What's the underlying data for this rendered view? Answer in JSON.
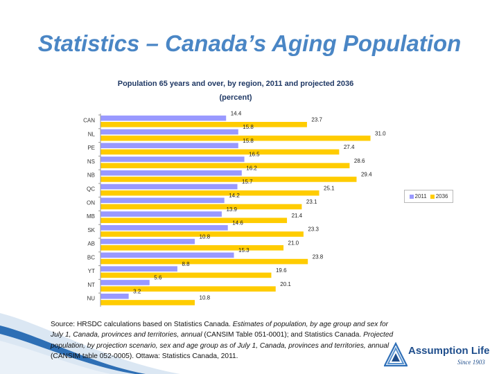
{
  "slide": {
    "title": "Statistics – Canada’s Aging Population"
  },
  "colors": {
    "series_2011": "#9999ff",
    "series_2036": "#ffcc00",
    "title": "#4a86c5",
    "chart_title": "#1f3864"
  },
  "chart_data": {
    "type": "bar",
    "orientation": "horizontal",
    "title": "Population 65 years and over, by region, 2011 and projected 2036",
    "subtitle": "(percent)",
    "categories": [
      "CAN",
      "NL",
      "PE",
      "NS",
      "NB",
      "QC",
      "ON",
      "MB",
      "SK",
      "AB",
      "BC",
      "YT",
      "NT",
      "NU"
    ],
    "series": [
      {
        "name": "2011",
        "values": [
          14.4,
          15.8,
          15.8,
          16.5,
          16.2,
          15.7,
          14.2,
          13.9,
          14.6,
          10.8,
          15.3,
          8.8,
          5.6,
          3.2
        ]
      },
      {
        "name": "2036",
        "values": [
          23.7,
          31.0,
          27.4,
          28.6,
          29.4,
          25.1,
          23.1,
          21.4,
          23.3,
          21.0,
          23.8,
          19.6,
          20.1,
          10.8
        ]
      }
    ],
    "xlim": [
      0,
      33
    ],
    "grid": false,
    "legend": "right"
  },
  "source": {
    "parts": [
      {
        "text": "Source: HRSDC calculations based on Statistics Canada. ",
        "italic": false
      },
      {
        "text": "Estimates of population, by age group and sex for July 1, Canada, provinces and territories, annual",
        "italic": true
      },
      {
        "text": " (CANSIM Table 051-0001); and Statistics Canada. ",
        "italic": false
      },
      {
        "text": "Projected population, by projection scenario, sex and age group as of July 1, Canada, provinces and territories, annual",
        "italic": true
      },
      {
        "text": " (CANSIM table 052-0005). Ottawa: Statistics Canada, 2011.",
        "italic": false
      }
    ]
  },
  "logo": {
    "name": "Assumption Life",
    "tagline": "Since 1903",
    "icon": "triangle-logo-icon"
  }
}
